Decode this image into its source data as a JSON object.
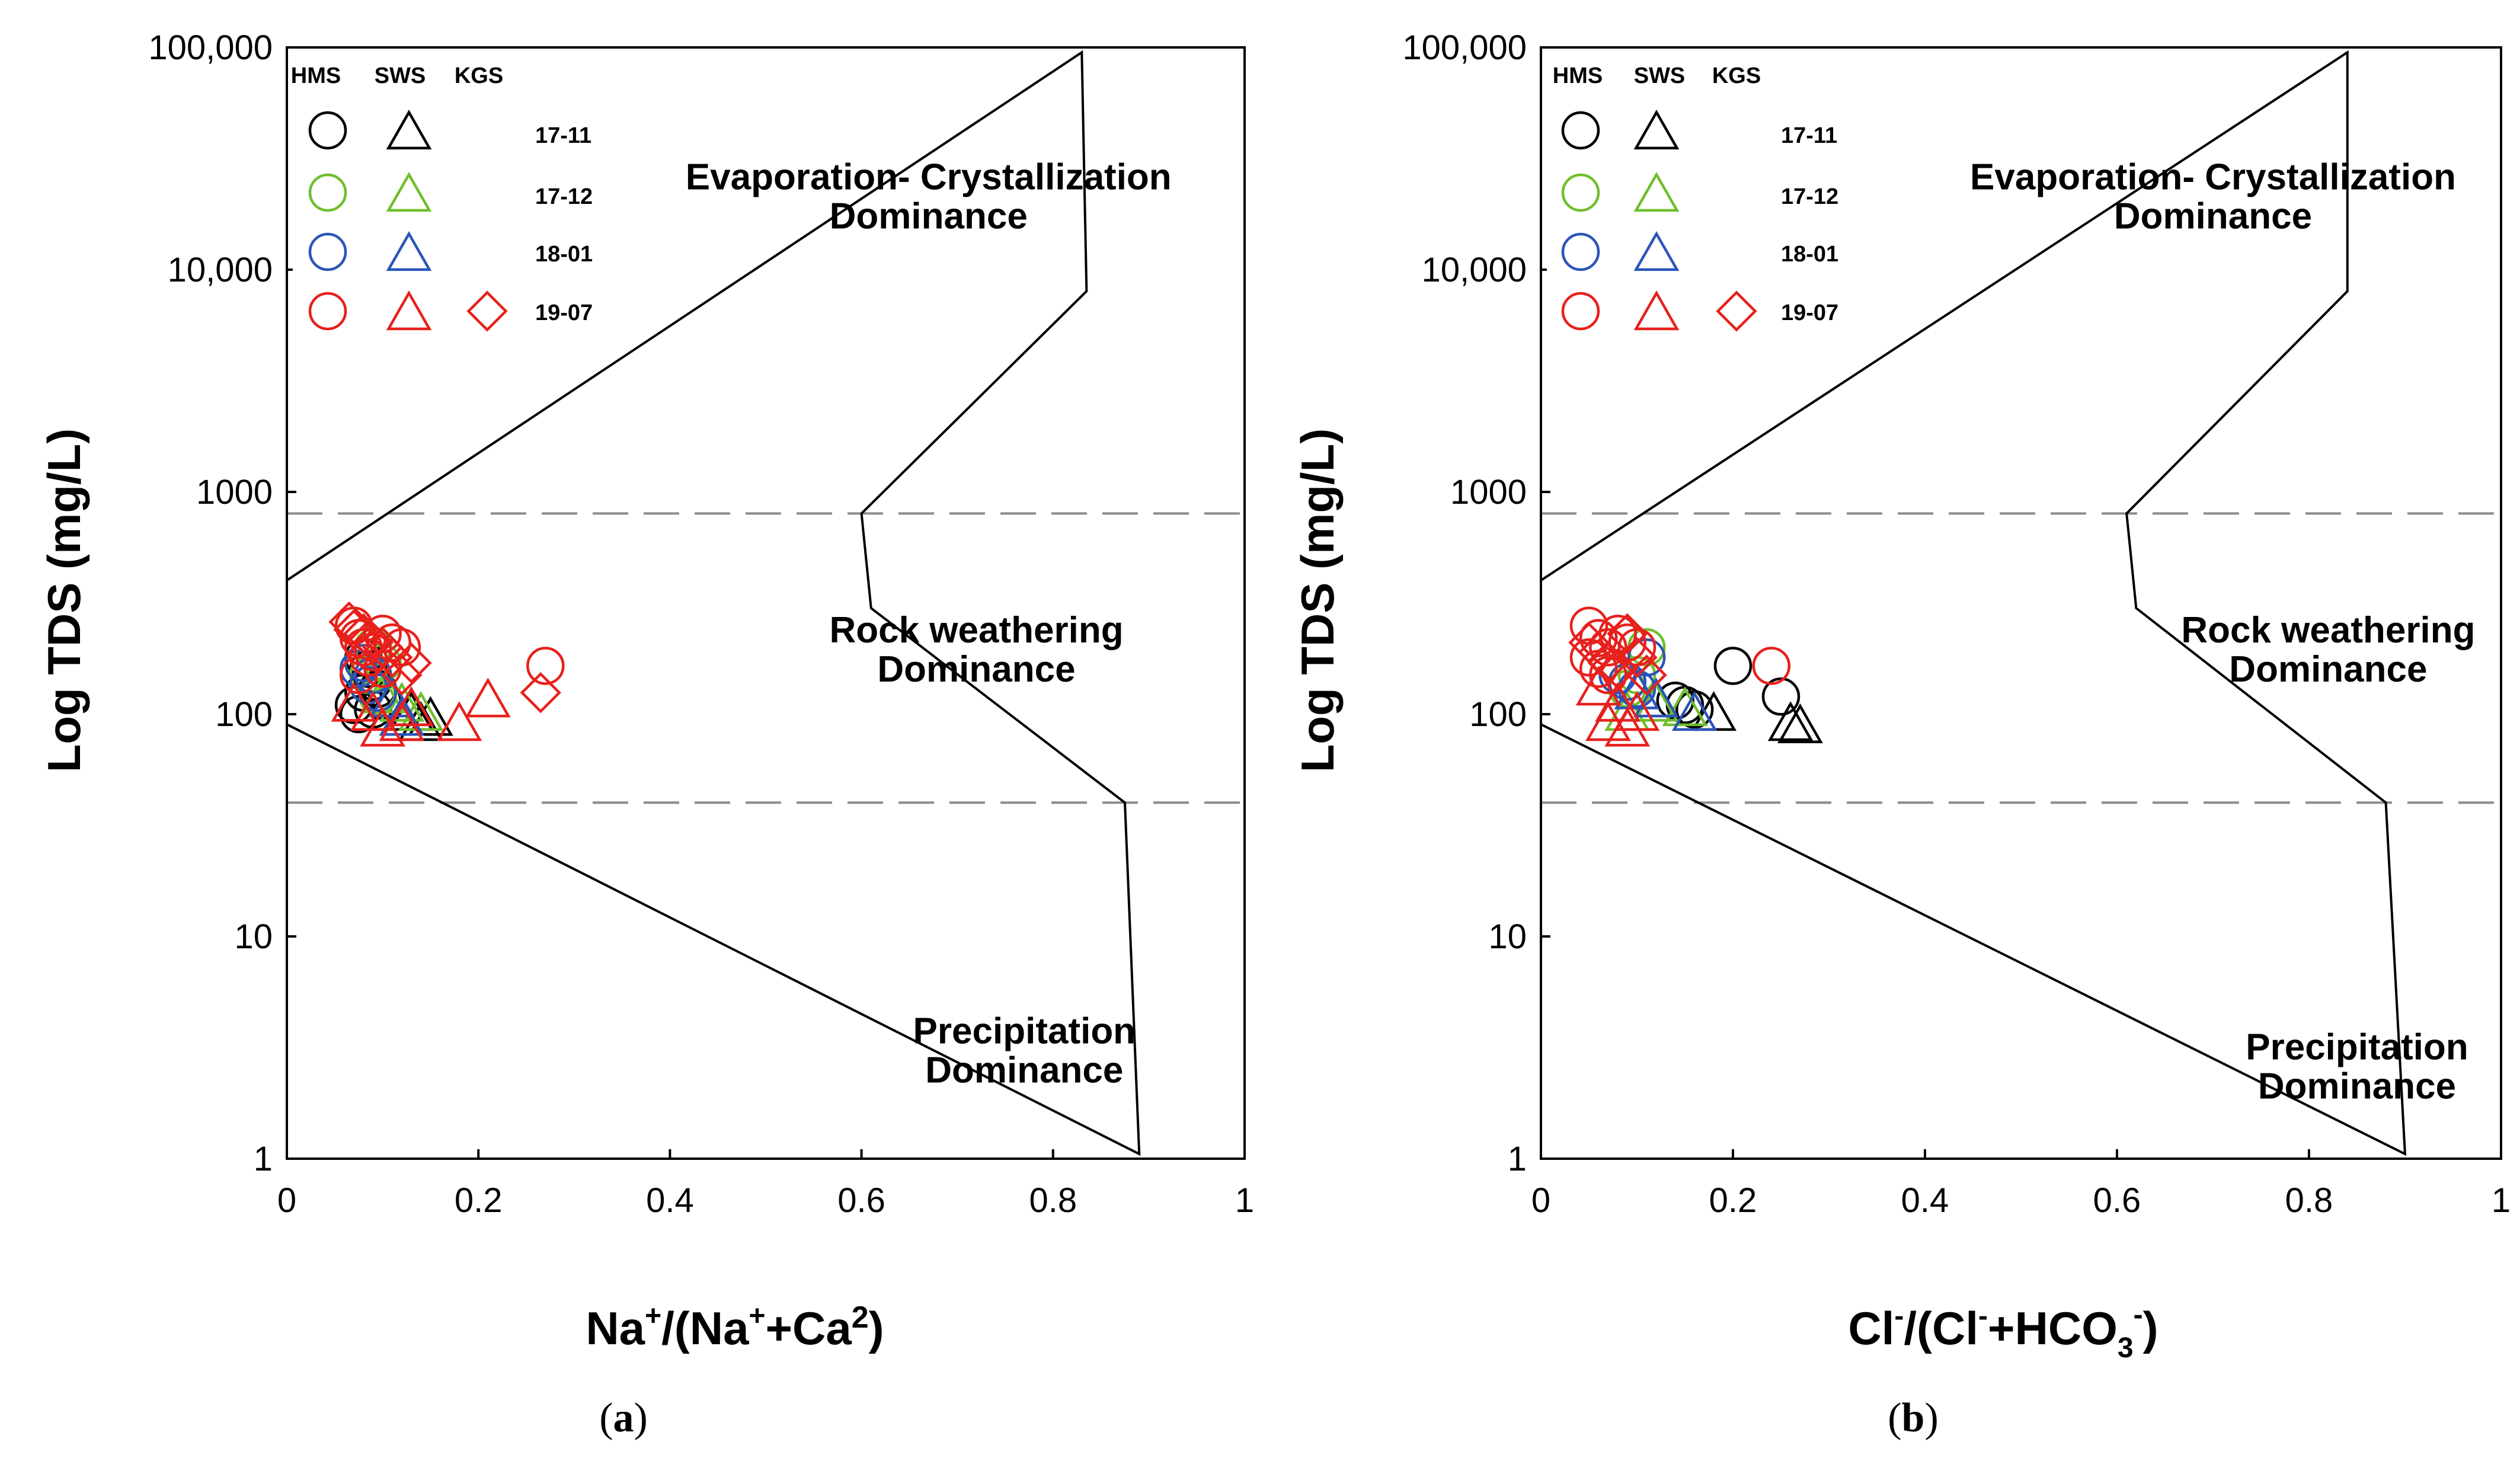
{
  "colors": {
    "17-11": "#000000",
    "17-12": "#6fbe2c",
    "18-01": "#2a55b8",
    "19-07": "#e8201c",
    "axis": "#000000",
    "dashed": "#8c8c8c"
  },
  "legend": {
    "headers": [
      "HMS",
      "SWS",
      "KGS"
    ],
    "rows": [
      "17-11",
      "17-12",
      "18-01",
      "19-07"
    ]
  },
  "chart_data": [
    {
      "type": "scatter",
      "caption_letter": "a",
      "xlabel": {
        "base1": "Na",
        "sup1": "+",
        "mid": "/(Na",
        "sup2": "+",
        "mid2": "+Ca",
        "sup3": "2",
        "end": ")"
      },
      "ylabel": "Log TDS (mg/L)",
      "xlim": [
        0,
        1
      ],
      "ylim_log": [
        1,
        100000
      ],
      "x_ticks": [
        "0",
        "0.2",
        "0.4",
        "0.6",
        "0.8",
        "1"
      ],
      "y_ticks": [
        "1",
        "10",
        "100",
        "1000",
        "10,000",
        "100,000"
      ],
      "x_tick_values": [
        0,
        0.2,
        0.4,
        0.6,
        0.8,
        1
      ],
      "y_tick_values": [
        1,
        10,
        100,
        1000,
        10000,
        100000
      ],
      "dashed_lines_tds": [
        800,
        40
      ],
      "boomerang": [
        [
          0,
          400
        ],
        [
          0.83,
          95000
        ],
        [
          0.835,
          8000
        ],
        [
          0.6,
          800
        ],
        [
          0.61,
          300
        ],
        [
          0.875,
          40
        ],
        [
          0.89,
          1.05
        ],
        [
          0,
          90
        ]
      ],
      "region_labels": [
        {
          "lines": [
            "Evaporation- Crystallization",
            "Dominance"
          ],
          "x": 0.67,
          "tds": 23000
        },
        {
          "lines": [
            "Rock weathering",
            "Dominance"
          ],
          "x": 0.72,
          "tds": 210
        },
        {
          "lines": [
            "Precipitation",
            "Dominance"
          ],
          "x": 0.77,
          "tds": 3.3
        }
      ],
      "series": [
        {
          "name": "HMS 17-11",
          "site": "HMS",
          "period": "17-11",
          "marker": "circle",
          "points": [
            [
              0.07,
              110
            ],
            [
              0.08,
              125
            ],
            [
              0.09,
              140
            ],
            [
              0.075,
              100
            ],
            [
              0.085,
              160
            ],
            [
              0.095,
              130
            ],
            [
              0.1,
              115
            ],
            [
              0.08,
              180
            ],
            [
              0.09,
              105
            ]
          ]
        },
        {
          "name": "SWS 17-11",
          "site": "SWS",
          "period": "17-11",
          "marker": "triangle",
          "points": [
            [
              0.14,
              90
            ],
            [
              0.15,
              95
            ],
            [
              0.13,
              100
            ]
          ]
        },
        {
          "name": "HMS 17-12",
          "site": "HMS",
          "period": "17-12",
          "marker": "circle",
          "points": [
            [
              0.09,
              200
            ],
            [
              0.1,
              170
            ],
            [
              0.085,
              150
            ],
            [
              0.095,
              120
            ]
          ]
        },
        {
          "name": "SWS 17-12",
          "site": "SWS",
          "period": "17-12",
          "marker": "triangle",
          "points": [
            [
              0.12,
              110
            ],
            [
              0.14,
              100
            ],
            [
              0.1,
              120
            ]
          ]
        },
        {
          "name": "HMS 18-01",
          "site": "HMS",
          "period": "18-01",
          "marker": "circle",
          "points": [
            [
              0.08,
              170
            ],
            [
              0.09,
              150
            ],
            [
              0.085,
              135
            ],
            [
              0.075,
              160
            ],
            [
              0.095,
              125
            ]
          ]
        },
        {
          "name": "SWS 18-01",
          "site": "SWS",
          "period": "18-01",
          "marker": "triangle",
          "points": [
            [
              0.13,
              105
            ],
            [
              0.11,
              115
            ],
            [
              0.12,
              95
            ]
          ]
        },
        {
          "name": "HMS 19-07",
          "site": "HMS",
          "period": "19-07",
          "marker": "circle",
          "points": [
            [
              0.07,
              250
            ],
            [
              0.075,
              220
            ],
            [
              0.08,
              200
            ],
            [
              0.1,
              230
            ],
            [
              0.11,
              210
            ],
            [
              0.12,
              200
            ],
            [
              0.085,
              180
            ],
            [
              0.09,
              190
            ],
            [
              0.1,
              160
            ],
            [
              0.075,
              150
            ],
            [
              0.27,
              165
            ]
          ]
        },
        {
          "name": "SWS 19-07",
          "site": "SWS",
          "period": "19-07",
          "marker": "triangle",
          "points": [
            [
              0.1,
              85
            ],
            [
              0.12,
              90
            ],
            [
              0.18,
              90
            ],
            [
              0.21,
              115
            ],
            [
              0.13,
              105
            ],
            [
              0.07,
              110
            ],
            [
              0.09,
              100
            ]
          ]
        },
        {
          "name": "KGS 19-07",
          "site": "KGS",
          "period": "19-07",
          "marker": "diamond",
          "points": [
            [
              0.065,
              260
            ],
            [
              0.07,
              240
            ],
            [
              0.09,
              210
            ],
            [
              0.11,
              180
            ],
            [
              0.13,
              170
            ],
            [
              0.1,
              200
            ],
            [
              0.12,
              150
            ],
            [
              0.08,
              230
            ],
            [
              0.265,
              125
            ]
          ]
        }
      ]
    },
    {
      "type": "scatter",
      "caption_letter": "b",
      "xlabel": {
        "base1": "Cl",
        "sup1": "-",
        "mid": "/(Cl",
        "sup2": "-",
        "mid2": "+HCO",
        "sub3": "3",
        "sup3": "-",
        "end": ")"
      },
      "ylabel": "Log TDS (mg/L)",
      "xlim": [
        0,
        1
      ],
      "ylim_log": [
        1,
        100000
      ],
      "x_ticks": [
        "0",
        "0.2",
        "0.4",
        "0.6",
        "0.8",
        "1"
      ],
      "y_ticks": [
        "1",
        "10",
        "100",
        "1000",
        "10,000",
        "100,000"
      ],
      "x_tick_values": [
        0,
        0.2,
        0.4,
        0.6,
        0.8,
        1
      ],
      "y_tick_values": [
        1,
        10,
        100,
        1000,
        10000,
        100000
      ],
      "dashed_lines_tds": [
        800,
        40
      ],
      "boomerang": [
        [
          0,
          400
        ],
        [
          0.84,
          95000
        ],
        [
          0.84,
          8000
        ],
        [
          0.61,
          800
        ],
        [
          0.62,
          300
        ],
        [
          0.88,
          40
        ],
        [
          0.9,
          1.05
        ],
        [
          0,
          90
        ]
      ],
      "region_labels": [
        {
          "lines": [
            "Evaporation- Crystallization",
            "Dominance"
          ],
          "x": 0.7,
          "tds": 23000
        },
        {
          "lines": [
            "Rock weathering",
            "Dominance"
          ],
          "x": 0.82,
          "tds": 210
        },
        {
          "lines": [
            "Precipitation",
            "Dominance"
          ],
          "x": 0.85,
          "tds": 2.8
        }
      ],
      "series": [
        {
          "name": "HMS 17-11",
          "site": "HMS",
          "period": "17-11",
          "marker": "circle",
          "points": [
            [
              0.14,
              115
            ],
            [
              0.15,
              110
            ],
            [
              0.16,
              105
            ],
            [
              0.2,
              165
            ],
            [
              0.25,
              120
            ]
          ]
        },
        {
          "name": "SWS 17-11",
          "site": "SWS",
          "period": "17-11",
          "marker": "triangle",
          "points": [
            [
              0.18,
              100
            ],
            [
              0.26,
              90
            ],
            [
              0.27,
              88
            ]
          ]
        },
        {
          "name": "HMS 17-12",
          "site": "HMS",
          "period": "17-12",
          "marker": "circle",
          "points": [
            [
              0.11,
              200
            ],
            [
              0.1,
              150
            ],
            [
              0.09,
              130
            ]
          ]
        },
        {
          "name": "SWS 17-12",
          "site": "SWS",
          "period": "17-12",
          "marker": "triangle",
          "points": [
            [
              0.12,
              110
            ],
            [
              0.15,
              105
            ],
            [
              0.09,
              100
            ]
          ]
        },
        {
          "name": "HMS 18-01",
          "site": "HMS",
          "period": "18-01",
          "marker": "circle",
          "points": [
            [
              0.08,
              150
            ],
            [
              0.09,
              140
            ],
            [
              0.11,
              180
            ],
            [
              0.1,
              130
            ]
          ]
        },
        {
          "name": "SWS 18-01",
          "site": "SWS",
          "period": "18-01",
          "marker": "triangle",
          "points": [
            [
              0.12,
              115
            ],
            [
              0.1,
              125
            ],
            [
              0.16,
              100
            ]
          ]
        },
        {
          "name": "HMS 19-07",
          "site": "HMS",
          "period": "19-07",
          "marker": "circle",
          "points": [
            [
              0.05,
              250
            ],
            [
              0.06,
              220
            ],
            [
              0.07,
              200
            ],
            [
              0.08,
              230
            ],
            [
              0.09,
              210
            ],
            [
              0.1,
              200
            ],
            [
              0.05,
              180
            ],
            [
              0.06,
              160
            ],
            [
              0.07,
              150
            ],
            [
              0.24,
              165
            ]
          ]
        },
        {
          "name": "SWS 19-07",
          "site": "SWS",
          "period": "19-07",
          "marker": "triangle",
          "points": [
            [
              0.07,
              90
            ],
            [
              0.09,
              85
            ],
            [
              0.06,
              130
            ],
            [
              0.1,
              100
            ],
            [
              0.08,
              110
            ]
          ]
        },
        {
          "name": "KGS 19-07",
          "site": "KGS",
          "period": "19-07",
          "marker": "diamond",
          "points": [
            [
              0.05,
              210
            ],
            [
              0.06,
              190
            ],
            [
              0.07,
              170
            ],
            [
              0.08,
              160
            ],
            [
              0.1,
              180
            ],
            [
              0.09,
              230
            ],
            [
              0.11,
              150
            ]
          ]
        }
      ]
    }
  ]
}
